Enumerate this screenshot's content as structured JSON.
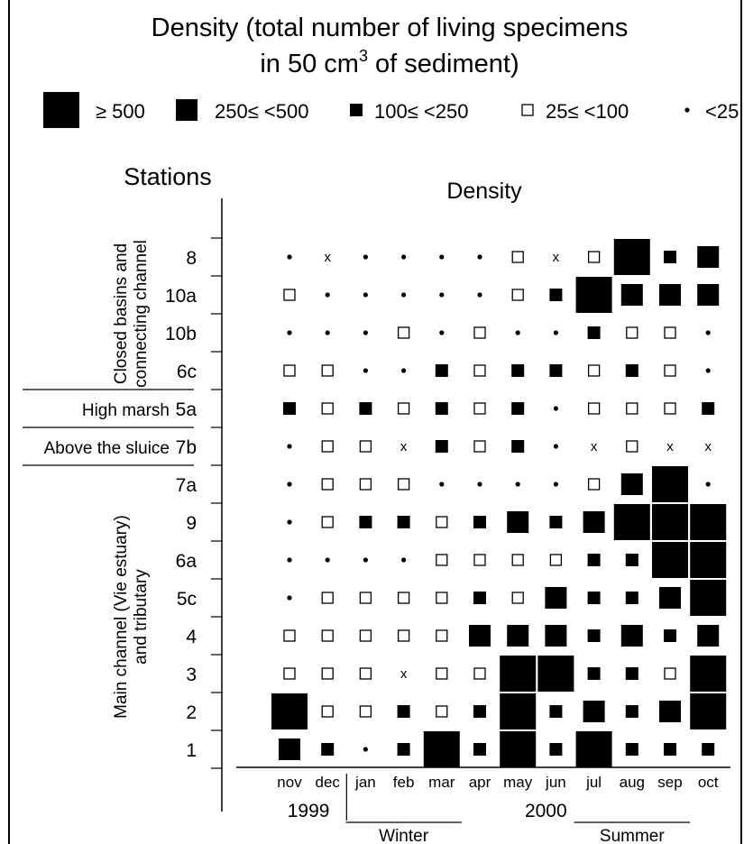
{
  "chart_data": {
    "type": "heatmap",
    "title_line1": "Density (total number of living specimens",
    "title_line2_pre": "in 50 cm",
    "title_line2_sup": "3",
    "title_line2_post": " of sediment)",
    "subtitle": "Density",
    "y_axis_title": "Stations",
    "legend": [
      {
        "symbol": "xl",
        "label": "≥ 500"
      },
      {
        "symbol": "l",
        "label": "250≤ <500"
      },
      {
        "symbol": "m",
        "label": "100≤ <250"
      },
      {
        "symbol": "s",
        "label": "25≤ <100"
      },
      {
        "symbol": "dot",
        "label": "<25"
      }
    ],
    "symbol_meaning": {
      "xl": "≥ 500",
      "l": "250≤ <500",
      "m": "100≤ <250",
      "s": "25≤ <100",
      "dot": "<25",
      "x": "x"
    },
    "months": [
      "nov",
      "dec",
      "jan",
      "feb",
      "mar",
      "apr",
      "may",
      "jun",
      "jul",
      "aug",
      "sep",
      "oct"
    ],
    "years": [
      {
        "label": "1999",
        "from": 0,
        "to": 1
      },
      {
        "label": "2000",
        "from": 2,
        "to": 11
      }
    ],
    "seasons": [
      {
        "label": "Winter",
        "from": 2,
        "to": 4
      },
      {
        "label": "Summer",
        "from": 8,
        "to": 10
      }
    ],
    "groups": [
      {
        "label_line1": "Closed basins and",
        "label_line2": "connecting channel",
        "rows": [
          "8",
          "10a",
          "10b",
          "6c"
        ]
      },
      {
        "label_line1": "High marsh",
        "label_line2": "",
        "rows": [
          "5a"
        ]
      },
      {
        "label_line1": "Above the sluice",
        "label_line2": "",
        "rows": [
          "7b"
        ]
      },
      {
        "label_line1": "Main channel (Vie estuary)",
        "label_line2": "and tributary",
        "rows": [
          "7a",
          "9",
          "6a",
          "5c",
          "4",
          "3",
          "2",
          "1"
        ]
      }
    ],
    "stations": [
      "8",
      "10a",
      "10b",
      "6c",
      "5a",
      "7b",
      "7a",
      "9",
      "6a",
      "5c",
      "4",
      "3",
      "2",
      "1"
    ],
    "values": [
      [
        "dot",
        "x",
        "dot",
        "dot",
        "dot",
        "dot",
        "s",
        "x",
        "s",
        "xl",
        "m",
        "l"
      ],
      [
        "s",
        "dot",
        "dot",
        "dot",
        "dot",
        "dot",
        "s",
        "m",
        "xl",
        "l",
        "l",
        "l"
      ],
      [
        "dot",
        "dot",
        "dot",
        "s",
        "dot",
        "s",
        "dot",
        "dot",
        "m",
        "s",
        "s",
        "dot"
      ],
      [
        "s",
        "s",
        "dot",
        "dot",
        "m",
        "s",
        "m",
        "m",
        "s",
        "m",
        "s",
        "dot"
      ],
      [
        "m",
        "s",
        "m",
        "s",
        "m",
        "s",
        "m",
        "dot",
        "s",
        "s",
        "s",
        "m"
      ],
      [
        "dot",
        "s",
        "s",
        "x",
        "m",
        "s",
        "m",
        "dot",
        "x",
        "s",
        "x",
        "x"
      ],
      [
        "dot",
        "s",
        "s",
        "s",
        "dot",
        "dot",
        "dot",
        "dot",
        "s",
        "l",
        "xl",
        "dot"
      ],
      [
        "dot",
        "s",
        "m",
        "m",
        "s",
        "m",
        "l",
        "m",
        "l",
        "xl",
        "xl",
        "xl"
      ],
      [
        "dot",
        "dot",
        "dot",
        "dot",
        "s",
        "s",
        "s",
        "s",
        "m",
        "m",
        "xl",
        "xl"
      ],
      [
        "dot",
        "s",
        "s",
        "s",
        "s",
        "m",
        "s",
        "l",
        "m",
        "m",
        "l",
        "xl"
      ],
      [
        "s",
        "s",
        "s",
        "s",
        "s",
        "l",
        "l",
        "l",
        "m",
        "l",
        "m",
        "l"
      ],
      [
        "s",
        "s",
        "s",
        "x",
        "s",
        "s",
        "xl",
        "xl",
        "m",
        "m",
        "s",
        "xl"
      ],
      [
        "xl",
        "s",
        "s",
        "m",
        "s",
        "m",
        "xl",
        "m",
        "l",
        "m",
        "l",
        "xl"
      ],
      [
        "l",
        "m",
        "dot",
        "m",
        "xl",
        "m",
        "xl",
        "m",
        "xl",
        "m",
        "m",
        "m"
      ]
    ]
  }
}
